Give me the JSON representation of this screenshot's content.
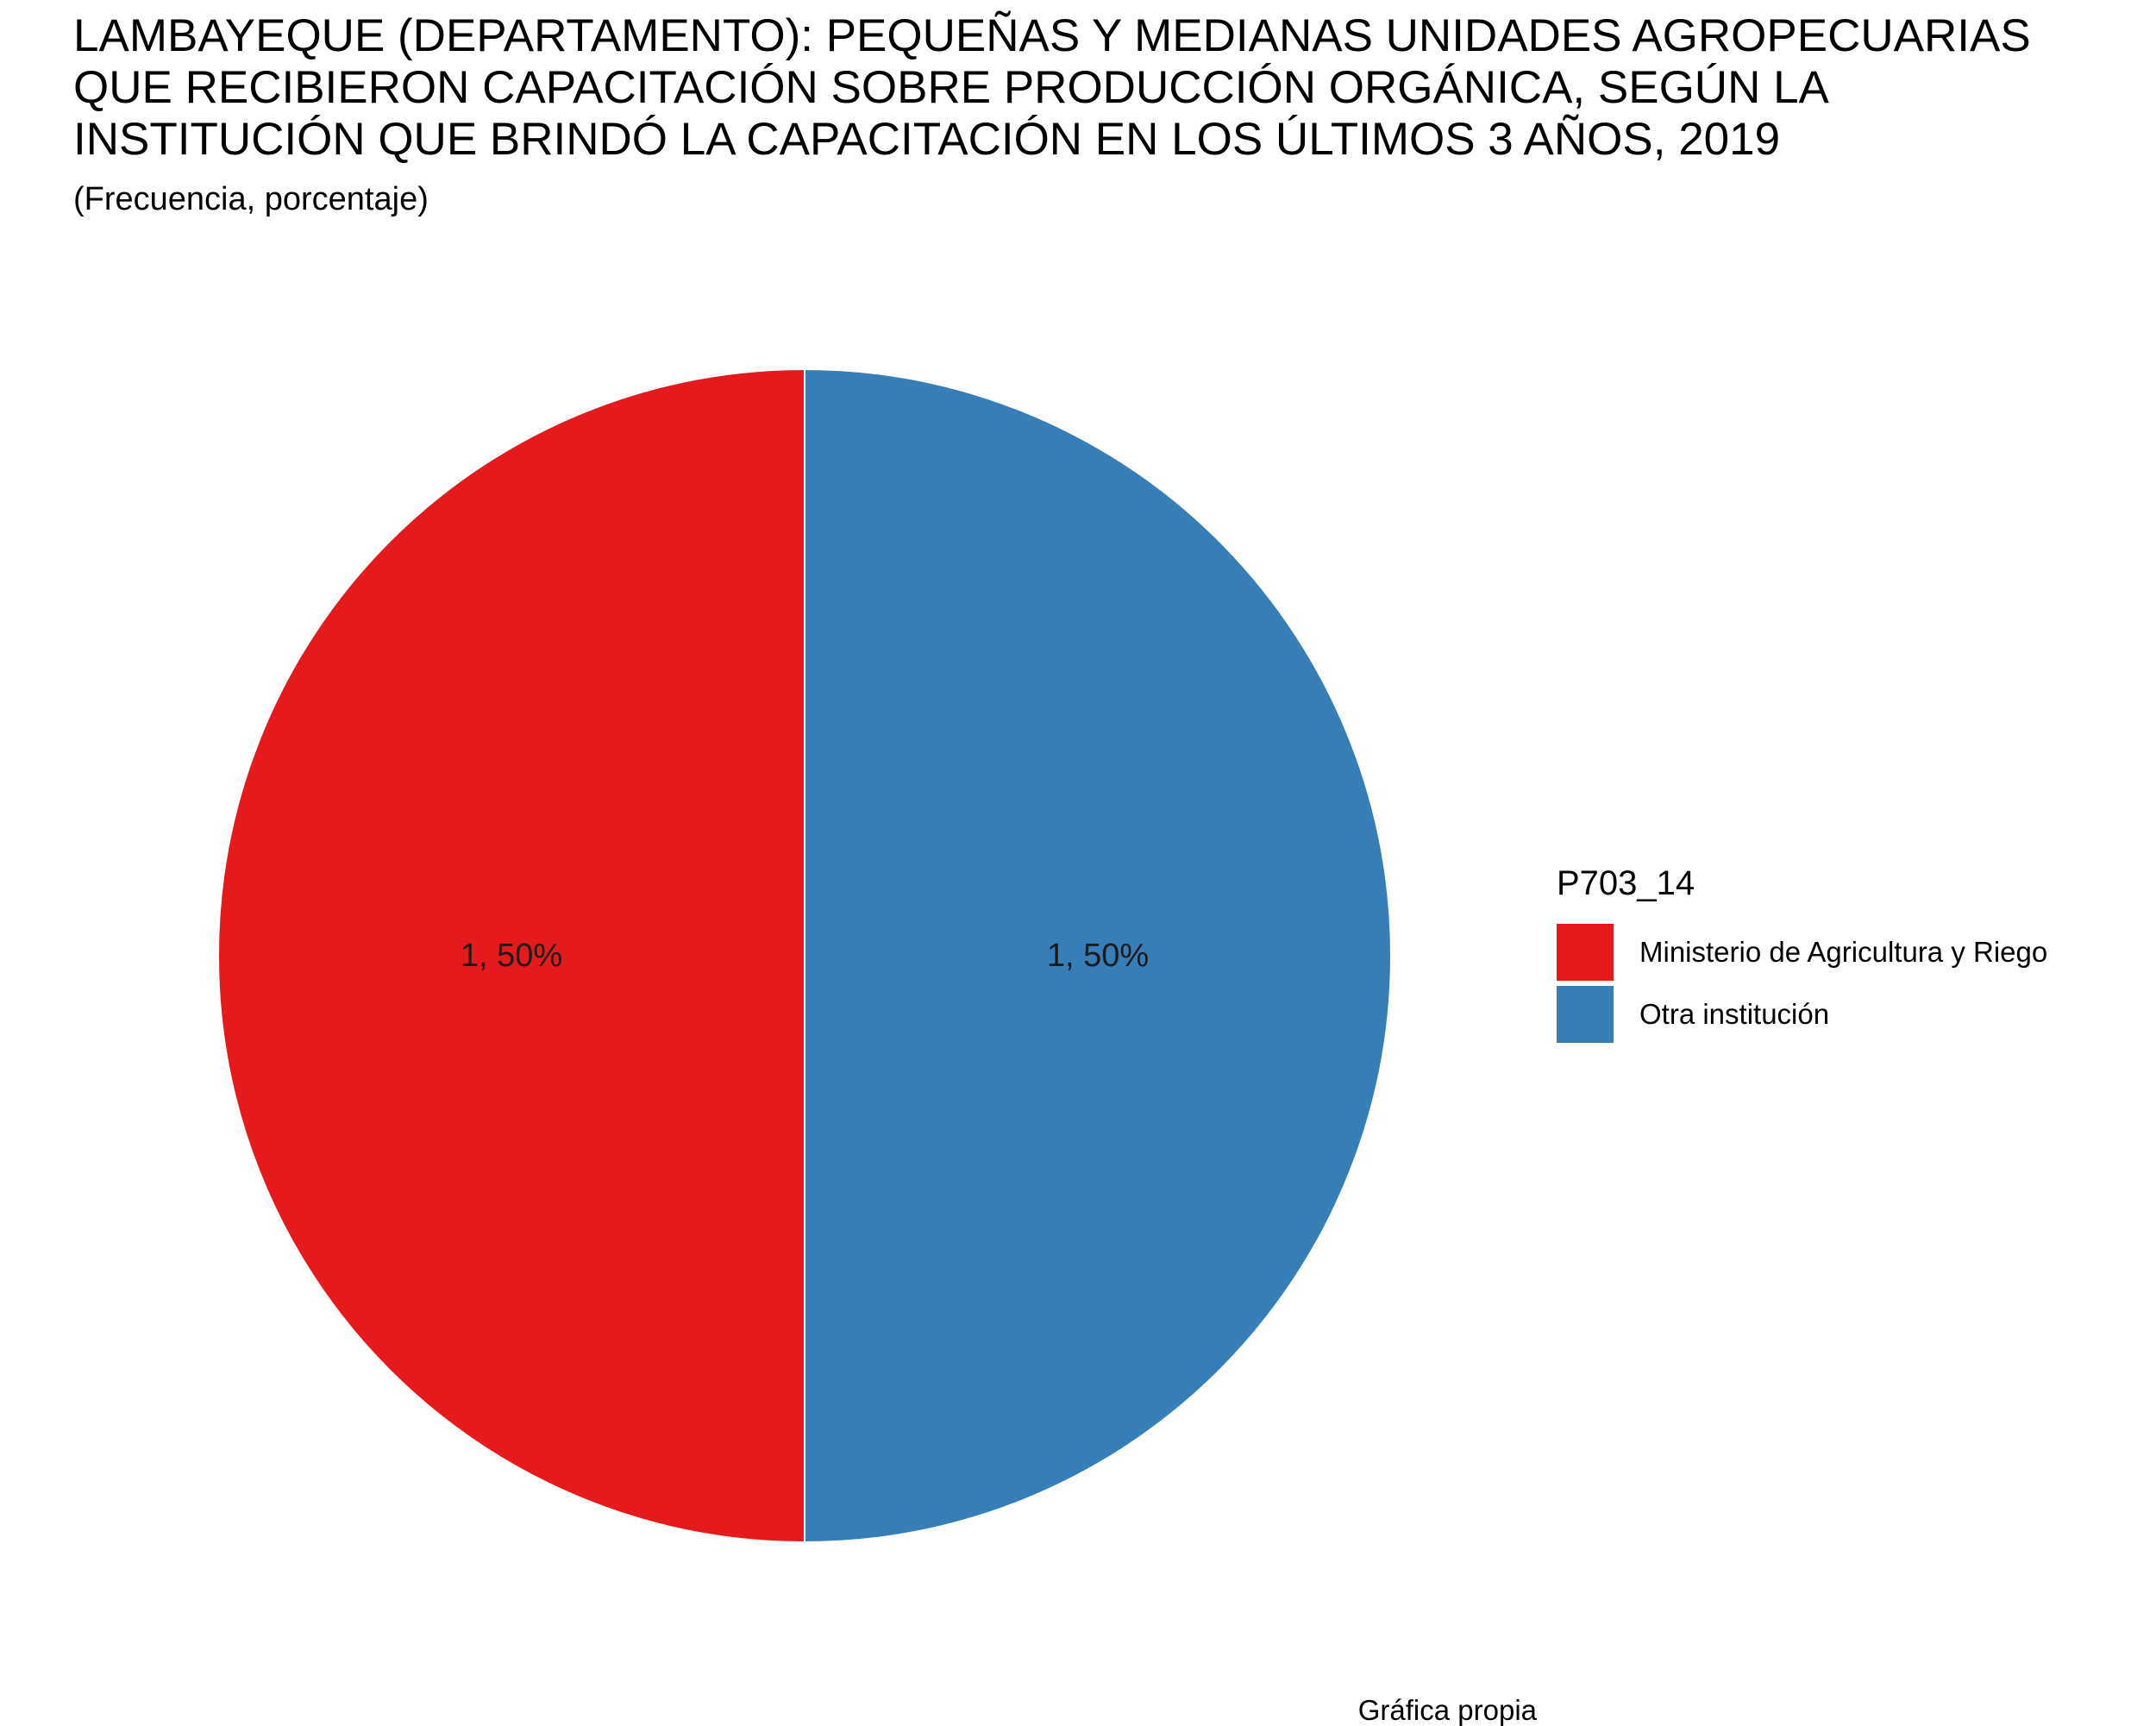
{
  "chart_data": {
    "type": "pie",
    "title_lines": [
      "LAMBAYEQUE (DEPARTAMENTO): PEQUEÑAS Y MEDIANAS UNIDADES AGROPECUARIAS",
      "QUE RECIBIERON CAPACITACIÓN SOBRE PRODUCCIÓN ORGÁNICA, SEGÚN LA",
      "INSTITUCIÓN QUE BRINDÓ LA CAPACITACIÓN EN LOS ÚLTIMOS 3 AÑOS, 2019"
    ],
    "subtitle": "(Frecuencia, porcentaje)",
    "caption": "Gráfica propia",
    "legend_title": "P703_14",
    "legend_position": "right",
    "slices": [
      {
        "name": "Ministerio de Agricultura y Riego",
        "value": 1,
        "percent": 50,
        "label": "1, 50%",
        "color": "#E41A1C"
      },
      {
        "name": "Otra institución",
        "value": 1,
        "percent": 50,
        "label": "1, 50%",
        "color": "#377EB8"
      }
    ]
  }
}
